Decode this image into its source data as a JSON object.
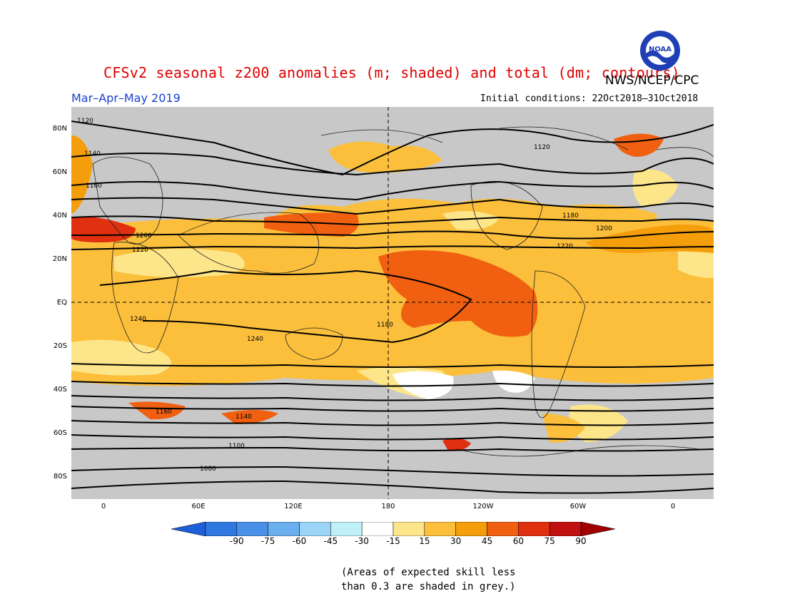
{
  "title": "CFSv2 seasonal z200 anomalies (m; shaded) and total (dm; contours)",
  "agency": "NWS/NCEP/CPC",
  "season": "Mar–Apr–May 2019",
  "initial_conditions": "Initial conditions: 22Oct2018–31Oct2018",
  "logo_text": "NOAA",
  "lat_labels": [
    "80N",
    "60N",
    "40N",
    "20N",
    "EQ",
    "20S",
    "40S",
    "60S",
    "80S"
  ],
  "lon_labels": [
    "0",
    "60E",
    "120E",
    "180",
    "120W",
    "60W",
    "0"
  ],
  "colorbar": {
    "labels": [
      "-90",
      "-75",
      "-60",
      "-45",
      "-30",
      "-15",
      "15",
      "30",
      "45",
      "60",
      "75",
      "90"
    ],
    "colors": [
      "#1e5fd8",
      "#2f78e0",
      "#4a90e6",
      "#6ab0ee",
      "#9ad4f6",
      "#c0f0f8",
      "#ffffff",
      "#fde68a",
      "#fbbf3c",
      "#f59e0b",
      "#f06010",
      "#e03010",
      "#c01010",
      "#a00000"
    ]
  },
  "note_line1": "(Areas of expected skill less",
  "note_line2": "than 0.3 are shaded in grey.)",
  "contour_labels": [
    "1120",
    "1140",
    "1160",
    "1180",
    "1200",
    "1220",
    "1240",
    "1080",
    "1100",
    "1120",
    "1140",
    "1160",
    "1180",
    "1200",
    "1220",
    "1240"
  ],
  "colors": {
    "title": "#e00000",
    "season": "#1a3fd0",
    "grey_skill": "#c8c8c8"
  }
}
